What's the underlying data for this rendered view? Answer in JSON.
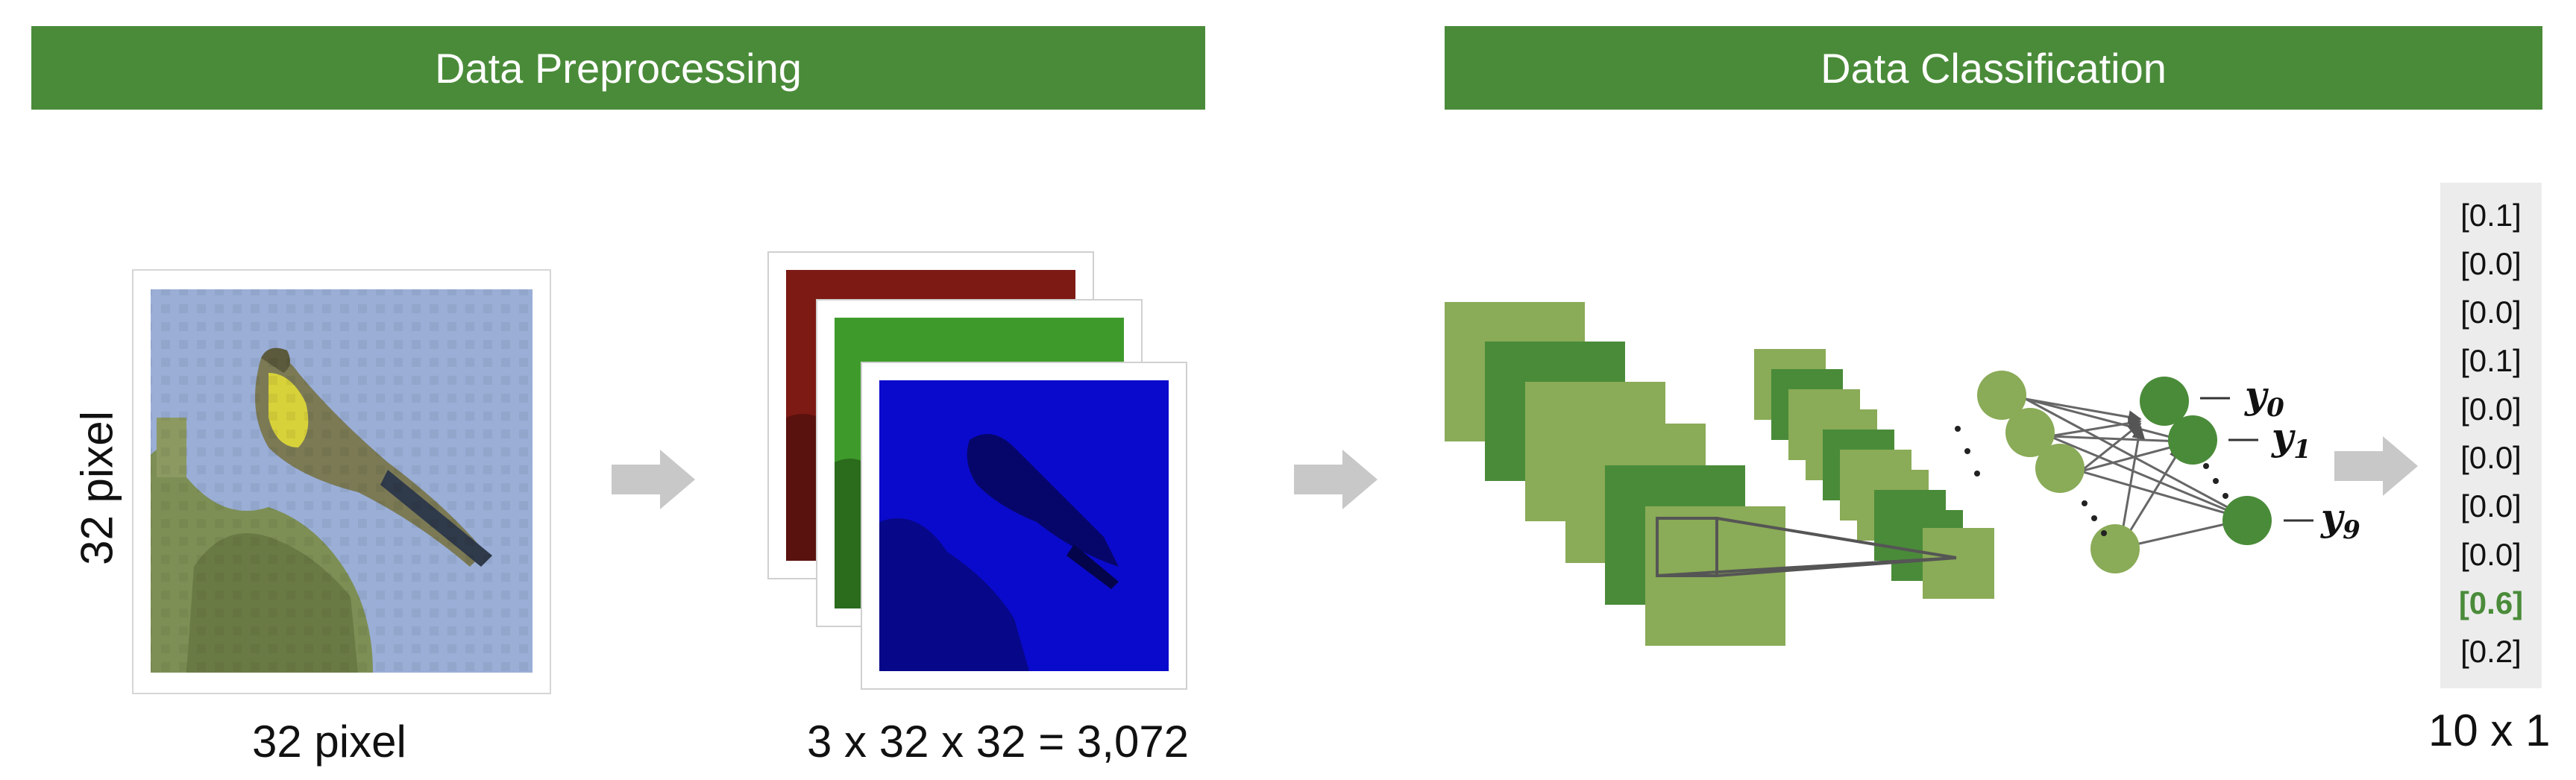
{
  "sections": {
    "preprocessing_title": "Data Preprocessing",
    "classification_title": "Data Classification"
  },
  "image_labels": {
    "height_label": "32 pixel",
    "width_label": "32 pixel",
    "channels_formula": "3 x 32 x 32 = 3,072"
  },
  "network": {
    "outputs": [
      {
        "base": "y",
        "sub": "0"
      },
      {
        "base": "y",
        "sub": "1"
      },
      {
        "base": "y",
        "sub": "9"
      }
    ]
  },
  "output_vector": {
    "values": [
      "[0.1]",
      "[0.0]",
      "[0.0]",
      "[0.1]",
      "[0.0]",
      "[0.0]",
      "[0.0]",
      "[0.0]",
      "[0.6]",
      "[0.2]"
    ],
    "highlight_index": 8,
    "shape_label": "10 x 1"
  },
  "colors": {
    "banner": "#4a8b39",
    "light_green": "#8aab57",
    "dark_green": "#4a8b39",
    "arrow_gray": "#c8c8c8",
    "red_channel": "#7d1a14",
    "green_channel": "#3e9b2b",
    "blue_channel": "#0a0acc"
  }
}
